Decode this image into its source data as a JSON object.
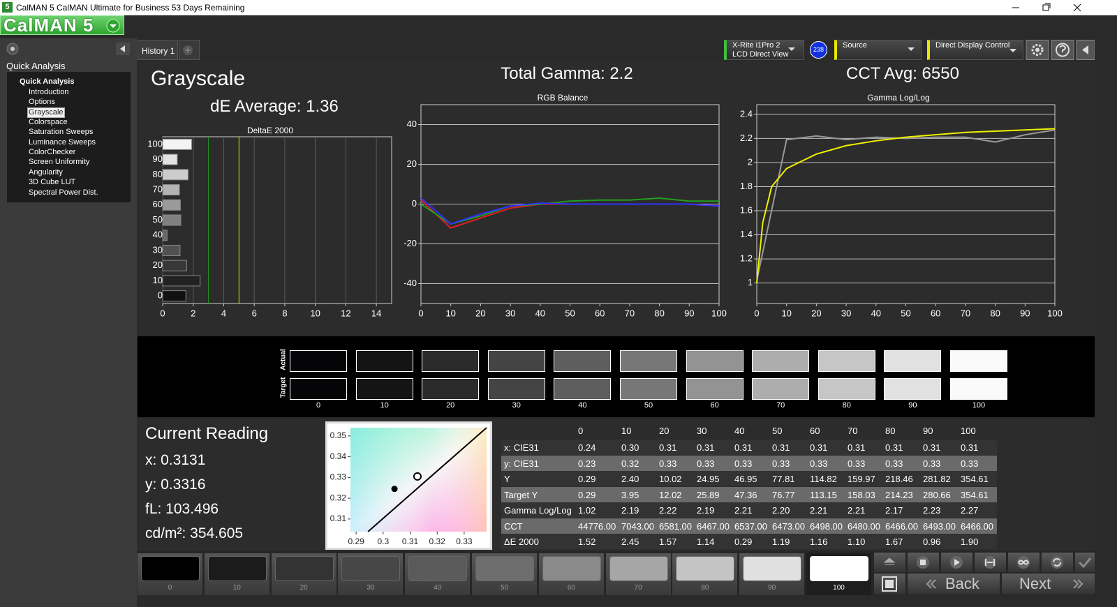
{
  "title_bar": {
    "app_icon": "5",
    "title": "CalMAN 5 CalMAN Ultimate for Business 53 Days Remaining"
  },
  "logo": "CalMAN 5",
  "sidebar": {
    "header": "Quick Analysis",
    "tree_root": "Quick Analysis",
    "items": [
      "Introduction",
      "Options",
      "Grayscale",
      "Colorspace",
      "Saturation Sweeps",
      "Luminance Sweeps",
      "ColorChecker",
      "Screen Uniformity",
      "Angularity",
      "3D Cube LUT",
      "Spectral Power Dist."
    ],
    "selected": 2
  },
  "tabs": [
    "History 1"
  ],
  "toolbar": {
    "meter_line1": "X-Rite i1Pro 2",
    "meter_line2": "LCD Direct View",
    "badge": "238",
    "source": "Source",
    "display": "Direct Display Control"
  },
  "headline": {
    "page_title": "Grayscale",
    "de_average": "dE Average: 1.36",
    "total_gamma": "Total Gamma: 2.2",
    "cct_average": "CCT Avg: 6550"
  },
  "chart_data": [
    {
      "type": "bar",
      "orientation": "horizontal",
      "title": "DeltaE 2000",
      "categories": [
        "100",
        "90",
        "80",
        "70",
        "60",
        "50",
        "40",
        "30",
        "20",
        "10",
        "0"
      ],
      "values": [
        1.9,
        0.96,
        1.67,
        1.1,
        1.16,
        1.19,
        0.29,
        1.14,
        1.57,
        2.45,
        1.52
      ],
      "colors": [
        "#f4f4f4",
        "#e2e2e2",
        "#cccccc",
        "#b4b4b4",
        "#9a9a9a",
        "#808080",
        "#686868",
        "#505050",
        "#383838",
        "#222222",
        "#111111"
      ],
      "xlim": [
        0,
        15
      ],
      "xticks": [
        0,
        2,
        4,
        6,
        8,
        10,
        12,
        14
      ],
      "grid": "x",
      "reference_lines": [
        {
          "value": 3,
          "color": "#1f9a1f"
        },
        {
          "value": 5,
          "color": "#e0e000"
        },
        {
          "value": 10,
          "color": "#e02020"
        }
      ]
    },
    {
      "type": "line",
      "title": "RGB Balance",
      "x": [
        0,
        10,
        20,
        30,
        40,
        50,
        60,
        70,
        80,
        90,
        100
      ],
      "series": [
        {
          "color": "#e02020",
          "values": [
            2,
            -12,
            -7,
            -2,
            0,
            0,
            0,
            0,
            0,
            0,
            -1
          ]
        },
        {
          "color": "#20a020",
          "values": [
            0,
            -10,
            -6,
            -1,
            0,
            1.5,
            2,
            2,
            3,
            1.5,
            1.5
          ]
        },
        {
          "color": "#3030ff",
          "values": [
            3,
            -10,
            -5,
            -1,
            0.5,
            0,
            0,
            0,
            0,
            0,
            -1
          ]
        }
      ],
      "xlim": [
        0,
        100
      ],
      "xticks": [
        0,
        10,
        20,
        30,
        40,
        50,
        60,
        70,
        80,
        90,
        100
      ],
      "ylim": [
        -50,
        50
      ],
      "yticks": [
        -40,
        -20,
        0,
        20,
        40
      ],
      "grid": "y"
    },
    {
      "type": "line",
      "title": "Gamma Log/Log",
      "x": [
        0,
        10,
        20,
        30,
        40,
        50,
        60,
        70,
        80,
        90,
        100
      ],
      "series": [
        {
          "color": "#9a9a9a",
          "values": [
            1.02,
            2.19,
            2.22,
            2.19,
            2.21,
            2.2,
            2.21,
            2.21,
            2.17,
            2.23,
            2.27
          ]
        },
        {
          "color": "#f0f000",
          "x": [
            0,
            2,
            5,
            10,
            20,
            30,
            40,
            50,
            60,
            70,
            80,
            90,
            100
          ],
          "values": [
            1.0,
            1.5,
            1.8,
            1.95,
            2.07,
            2.14,
            2.18,
            2.21,
            2.23,
            2.25,
            2.26,
            2.27,
            2.28
          ]
        }
      ],
      "xlim": [
        0,
        100
      ],
      "xticks": [
        0,
        10,
        20,
        30,
        40,
        50,
        60,
        70,
        80,
        90,
        100
      ],
      "ylim": [
        0.83,
        2.48
      ],
      "yticks": [
        1,
        1.2,
        1.4,
        1.6,
        1.8,
        2,
        2.2,
        2.4
      ],
      "grid": "y"
    },
    {
      "type": "scatter",
      "series": [
        {
          "mark": "line",
          "color": "#000000",
          "x": [
            0.2944,
            0.3383
          ],
          "y": [
            0.3039,
            0.354
          ]
        },
        {
          "mark": "dot",
          "color": "#000000",
          "x": [
            0.3042
          ],
          "y": [
            0.3245
          ]
        },
        {
          "mark": "ring",
          "color": "#ffffff",
          "x": [
            0.3127
          ],
          "y": [
            0.3305
          ]
        }
      ],
      "xlim": [
        0.2879,
        0.3383
      ],
      "xticks": [
        0.29,
        0.3,
        0.31,
        0.32,
        0.33
      ],
      "ylim": [
        0.3039,
        0.354
      ],
      "yticks": [
        0.31,
        0.32,
        0.33,
        0.34,
        0.35
      ],
      "grid": false
    }
  ],
  "swatches": {
    "row_labels": [
      "Actual",
      "Target"
    ],
    "levels": [
      "0",
      "10",
      "20",
      "30",
      "40",
      "50",
      "60",
      "70",
      "80",
      "90",
      "100"
    ],
    "colors": [
      "#050508",
      "#141414",
      "#2a2a2a",
      "#444444",
      "#5e5e5e",
      "#777777",
      "#939393",
      "#adadad",
      "#c6c6c6",
      "#e1e1e1",
      "#fafafa"
    ]
  },
  "current_reading": {
    "title": "Current Reading",
    "lines": [
      "x: 0.3131",
      "y: 0.3316",
      "fL: 103.496",
      "cd/m²: 354.605"
    ]
  },
  "table": {
    "header": [
      "0",
      "10",
      "20",
      "30",
      "40",
      "50",
      "60",
      "70",
      "80",
      "90",
      "100"
    ],
    "rows": [
      {
        "label": "x: CIE31",
        "values": [
          "0.24",
          "0.30",
          "0.31",
          "0.31",
          "0.31",
          "0.31",
          "0.31",
          "0.31",
          "0.31",
          "0.31",
          "0.31"
        ]
      },
      {
        "label": "y: CIE31",
        "values": [
          "0.23",
          "0.32",
          "0.33",
          "0.33",
          "0.33",
          "0.33",
          "0.33",
          "0.33",
          "0.33",
          "0.33",
          "0.33"
        ]
      },
      {
        "label": "Y",
        "values": [
          "0.29",
          "2.40",
          "10.02",
          "24.95",
          "46.95",
          "77.81",
          "114.82",
          "159.97",
          "218.46",
          "281.82",
          "354.61"
        ]
      },
      {
        "label": "Target Y",
        "values": [
          "0.29",
          "3.95",
          "12.02",
          "25.89",
          "47.36",
          "76.77",
          "113.15",
          "158.03",
          "214.23",
          "280.66",
          "354.61"
        ]
      },
      {
        "label": "Gamma Log/Log",
        "values": [
          "1.02",
          "2.19",
          "2.22",
          "2.19",
          "2.21",
          "2.20",
          "2.21",
          "2.21",
          "2.17",
          "2.23",
          "2.27"
        ]
      },
      {
        "label": "CCT",
        "values": [
          "44776.00",
          "7043.00",
          "6581.00",
          "6467.00",
          "6537.00",
          "6473.00",
          "6498.00",
          "6480.00",
          "6466.00",
          "6493.00",
          "6466.00"
        ]
      },
      {
        "label": "ΔE 2000",
        "values": [
          "1.52",
          "2.45",
          "1.57",
          "1.14",
          "0.29",
          "1.19",
          "1.16",
          "1.10",
          "1.67",
          "0.96",
          "1.90"
        ]
      }
    ]
  },
  "bottom_bar": {
    "levels": [
      "0",
      "10",
      "20",
      "30",
      "40",
      "50",
      "60",
      "70",
      "80",
      "90",
      "100"
    ],
    "colors": [
      "#000000",
      "#1b1b1b",
      "#333333",
      "#474747",
      "#5a5a5a",
      "#6e6e6e",
      "#8a8a8a",
      "#a6a6a6",
      "#c4c4c4",
      "#e0e0e0",
      "#ffffff"
    ],
    "selected": 10,
    "back": "Back",
    "next": "Next"
  }
}
